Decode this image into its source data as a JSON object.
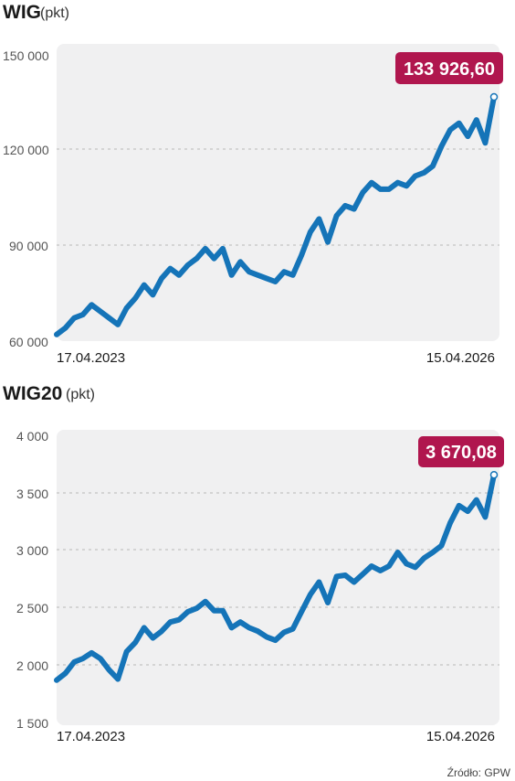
{
  "chart_data": [
    {
      "type": "line",
      "title": "WIG",
      "unit": "(pkt)",
      "ylim": [
        60000,
        150000
      ],
      "y_ticks": [
        60000,
        90000,
        120000,
        150000
      ],
      "y_tick_labels": [
        "60 000",
        "90 000",
        "120 000",
        "150 000"
      ],
      "x_start_label": "17.04.2023",
      "x_end_label": "15.04.2026",
      "last_value_label": "133 926,60",
      "color": "#1574b8",
      "badge_color": "#b0164e",
      "grid": true,
      "x": [
        0.0,
        0.02,
        0.04,
        0.06,
        0.08,
        0.1,
        0.12,
        0.14,
        0.16,
        0.18,
        0.2,
        0.22,
        0.24,
        0.26,
        0.28,
        0.3,
        0.32,
        0.34,
        0.36,
        0.38,
        0.4,
        0.42,
        0.44,
        0.46,
        0.48,
        0.5,
        0.52,
        0.54,
        0.56,
        0.58,
        0.6,
        0.62,
        0.64,
        0.66,
        0.68,
        0.7,
        0.72,
        0.74,
        0.76,
        0.78,
        0.8,
        0.82,
        0.84,
        0.86,
        0.88,
        0.9,
        0.92,
        0.94,
        0.96,
        0.98,
        1.0
      ],
      "values": [
        62000,
        64000,
        67000,
        68000,
        71000,
        69000,
        67000,
        65000,
        70000,
        73000,
        77000,
        74000,
        79000,
        82000,
        80000,
        83000,
        85000,
        88000,
        85000,
        88000,
        80000,
        84000,
        81000,
        80000,
        79000,
        78000,
        81000,
        80000,
        86000,
        93000,
        97000,
        90000,
        98000,
        101000,
        100000,
        105000,
        108000,
        106000,
        106000,
        108000,
        107000,
        110000,
        111000,
        113000,
        119000,
        124000,
        126000,
        122000,
        127000,
        120000,
        133926.6
      ]
    },
    {
      "type": "line",
      "title": "WIG20",
      "unit": "(pkt)",
      "ylim": [
        1500,
        4000
      ],
      "y_ticks": [
        1500,
        2000,
        2500,
        3000,
        3500,
        4000
      ],
      "y_tick_labels": [
        "1 500",
        "2 000",
        "2 500",
        "3 000",
        "3 500",
        "4 000"
      ],
      "x_start_label": "17.04.2023",
      "x_end_label": "15.04.2026",
      "last_value_label": "3 670,08",
      "color": "#1574b8",
      "badge_color": "#b0164e",
      "grid": true,
      "x": [
        0.0,
        0.02,
        0.04,
        0.06,
        0.08,
        0.1,
        0.12,
        0.14,
        0.16,
        0.18,
        0.2,
        0.22,
        0.24,
        0.26,
        0.28,
        0.3,
        0.32,
        0.34,
        0.36,
        0.38,
        0.4,
        0.42,
        0.44,
        0.46,
        0.48,
        0.5,
        0.52,
        0.54,
        0.56,
        0.58,
        0.6,
        0.62,
        0.64,
        0.66,
        0.68,
        0.7,
        0.72,
        0.74,
        0.76,
        0.78,
        0.8,
        0.82,
        0.84,
        0.86,
        0.88,
        0.9,
        0.92,
        0.94,
        0.96,
        0.98,
        1.0
      ],
      "values": [
        1870,
        1930,
        2030,
        2060,
        2110,
        2060,
        1960,
        1880,
        2120,
        2200,
        2330,
        2240,
        2300,
        2380,
        2400,
        2470,
        2500,
        2560,
        2480,
        2480,
        2330,
        2380,
        2330,
        2300,
        2250,
        2220,
        2290,
        2320,
        2470,
        2620,
        2730,
        2550,
        2780,
        2790,
        2730,
        2800,
        2870,
        2830,
        2870,
        2990,
        2890,
        2860,
        2940,
        2990,
        3050,
        3250,
        3400,
        3350,
        3450,
        3300,
        3670.08
      ]
    }
  ],
  "source": "Źródło: GPW"
}
